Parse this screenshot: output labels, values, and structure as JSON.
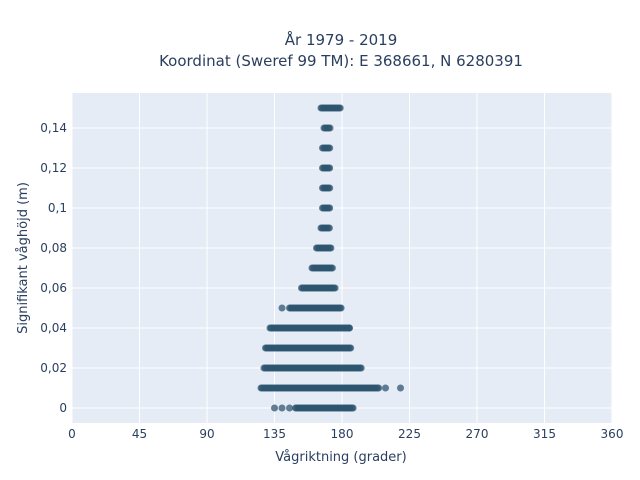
{
  "chart_data": {
    "type": "scatter",
    "title_line1": "År 1979 - 2019",
    "title_line2": "Koordinat (Sweref 99 TM): E 368661, N 6280391",
    "xlabel": "Vågriktning (grader)",
    "ylabel": "Signifikant våghöjd (m)",
    "xlim": [
      0,
      360
    ],
    "ylim": [
      -0.0075,
      0.1575
    ],
    "x_ticks": [
      0,
      45,
      90,
      135,
      180,
      225,
      270,
      315,
      360
    ],
    "x_tick_labels": [
      "0",
      "45",
      "90",
      "135",
      "180",
      "225",
      "270",
      "315",
      "360"
    ],
    "y_ticks": [
      0,
      0.02,
      0.04,
      0.06,
      0.08,
      0.1,
      0.12,
      0.14
    ],
    "y_tick_labels": [
      "0",
      "0,02",
      "0,04",
      "0,06",
      "0,08",
      "0,1",
      "0,12",
      "0,14"
    ],
    "grid": true,
    "colors": {
      "marker": "#2f5570",
      "plot_bg": "#e5ecf6",
      "grid": "#ffffff",
      "text": "#2a3f5f"
    },
    "bands": [
      {
        "y": 0.0,
        "x_min": 149,
        "x_max": 188
      },
      {
        "y": 0.01,
        "x_min": 126,
        "x_max": 205
      },
      {
        "y": 0.02,
        "x_min": 128,
        "x_max": 193
      },
      {
        "y": 0.03,
        "x_min": 129,
        "x_max": 186
      },
      {
        "y": 0.04,
        "x_min": 132,
        "x_max": 185
      },
      {
        "y": 0.05,
        "x_min": 145,
        "x_max": 180
      },
      {
        "y": 0.06,
        "x_min": 153,
        "x_max": 176
      },
      {
        "y": 0.07,
        "x_min": 160,
        "x_max": 174
      },
      {
        "y": 0.08,
        "x_min": 163,
        "x_max": 173
      },
      {
        "y": 0.09,
        "x_min": 166,
        "x_max": 172
      },
      {
        "y": 0.1,
        "x_min": 167,
        "x_max": 172
      },
      {
        "y": 0.11,
        "x_min": 167,
        "x_max": 172
      },
      {
        "y": 0.12,
        "x_min": 167,
        "x_max": 172
      },
      {
        "y": 0.13,
        "x_min": 167,
        "x_max": 172
      },
      {
        "y": 0.14,
        "x_min": 168,
        "x_max": 172
      },
      {
        "y": 0.15,
        "x_min": 166,
        "x_max": 179
      }
    ],
    "points": [
      {
        "x": 135,
        "y": 0.0
      },
      {
        "x": 140,
        "y": 0.0
      },
      {
        "x": 145,
        "y": 0.0
      },
      {
        "x": 209,
        "y": 0.01
      },
      {
        "x": 219,
        "y": 0.01
      },
      {
        "x": 140,
        "y": 0.05
      },
      {
        "x": 185,
        "y": 0.04
      }
    ]
  }
}
